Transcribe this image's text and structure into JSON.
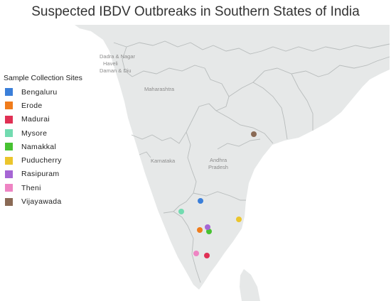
{
  "title": "Suspected IBDV Outbreaks in Southern States of India",
  "map": {
    "land_color": "#e6e8e8",
    "sea_color": "#ffffff",
    "border_color": "#b8bcbc",
    "region_labels": {
      "dadra": "Dadra & Nagar",
      "haveli": "Haveli",
      "daman": "Daman & Diu",
      "maharashtra": "Maharashtra",
      "karnataka": "Karnataka",
      "andhra_1": "Andhra",
      "andhra_2": "Pradesh"
    }
  },
  "legend": {
    "title": "Sample Collection Sites",
    "items": [
      {
        "label": "Bengaluru",
        "color": "#3b7fd9"
      },
      {
        "label": "Erode",
        "color": "#f07c1b"
      },
      {
        "label": "Madurai",
        "color": "#e03054"
      },
      {
        "label": "Mysore",
        "color": "#72dbb0"
      },
      {
        "label": "Namakkal",
        "color": "#47c232"
      },
      {
        "label": "Puducherry",
        "color": "#ebc52c"
      },
      {
        "label": "Rasipuram",
        "color": "#a666d4"
      },
      {
        "label": "Theni",
        "color": "#ee84c3"
      },
      {
        "label": "Vijayawada",
        "color": "#8a6a55"
      }
    ]
  }
}
